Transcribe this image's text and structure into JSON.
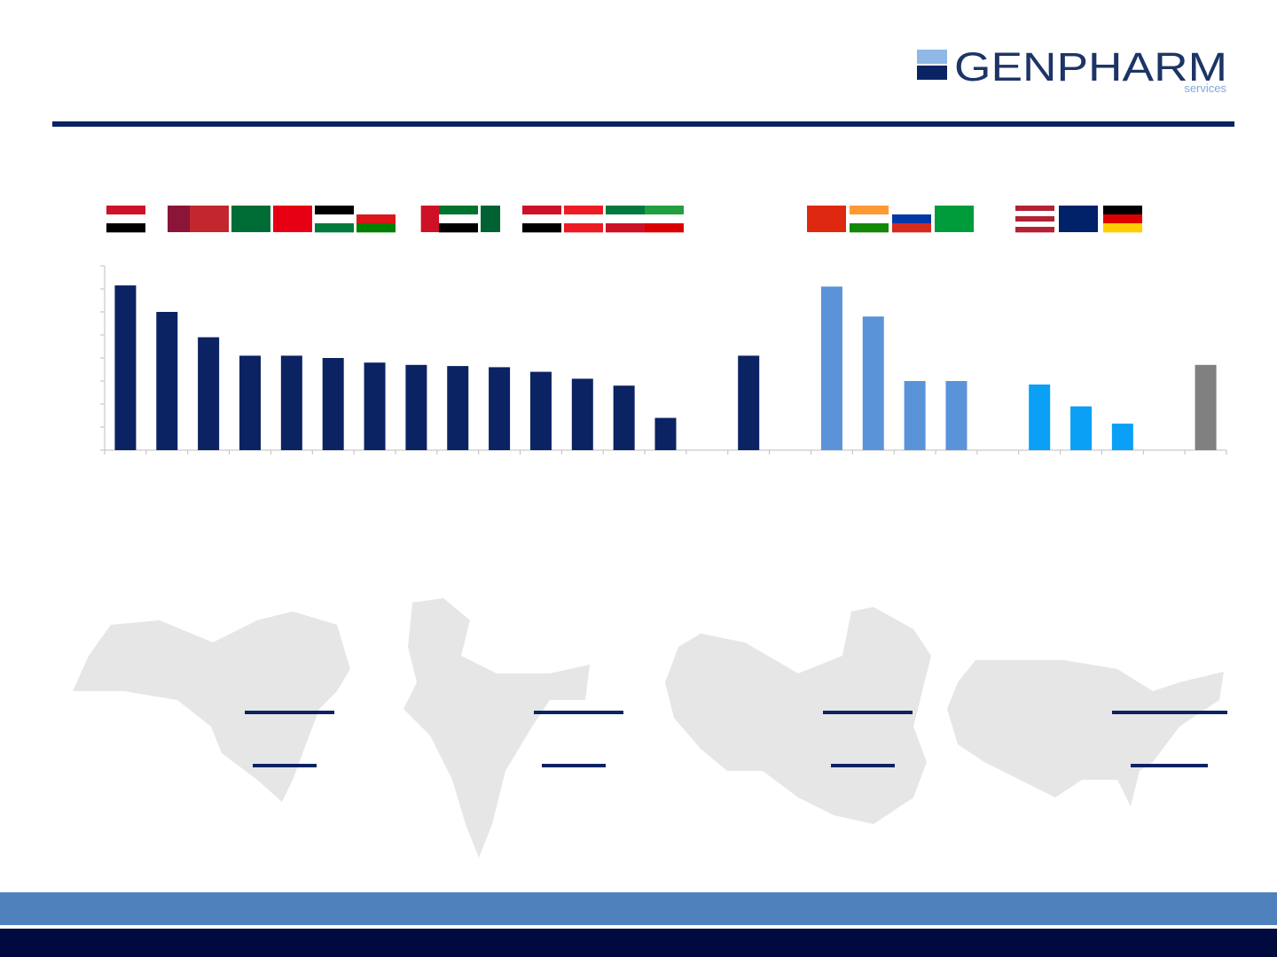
{
  "header": {
    "logo": "GENPHARM",
    "logo_sub": "services"
  },
  "chart_data": {
    "type": "bar",
    "categories": [
      null,
      null,
      null,
      null,
      null,
      null,
      null,
      null,
      null,
      null,
      null,
      null,
      null,
      null,
      null,
      null,
      null,
      null,
      null,
      null,
      null,
      null,
      null,
      null,
      null,
      null,
      null
    ],
    "values": [
      7.15,
      6.0,
      4.9,
      4.1,
      4.1,
      4.0,
      3.8,
      3.7,
      3.65,
      3.6,
      3.4,
      3.1,
      2.8,
      1.4,
      null,
      4.1,
      null,
      7.1,
      5.8,
      3.0,
      3.0,
      null,
      2.85,
      1.9,
      1.15,
      null,
      3.7
    ],
    "colors": [
      "#0b2363",
      "#0b2363",
      "#0b2363",
      "#0b2363",
      "#0b2363",
      "#0b2363",
      "#0b2363",
      "#0b2363",
      "#0b2363",
      "#0b2363",
      "#0b2363",
      "#0b2363",
      "#0b2363",
      "#0b2363",
      "#0b2363",
      "#0b2363",
      "#0b2363",
      "#5b93d8",
      "#5b93d8",
      "#5b93d8",
      "#5b93d8",
      "#5b93d8",
      "#0aa0f5",
      "#0aa0f5",
      "#0aa0f5",
      "#0aa0f5",
      "#808080"
    ],
    "ylim": [
      0,
      8
    ],
    "yticks": [
      0,
      1,
      2,
      3,
      4,
      5,
      6,
      7,
      8
    ],
    "grid": false
  }
}
